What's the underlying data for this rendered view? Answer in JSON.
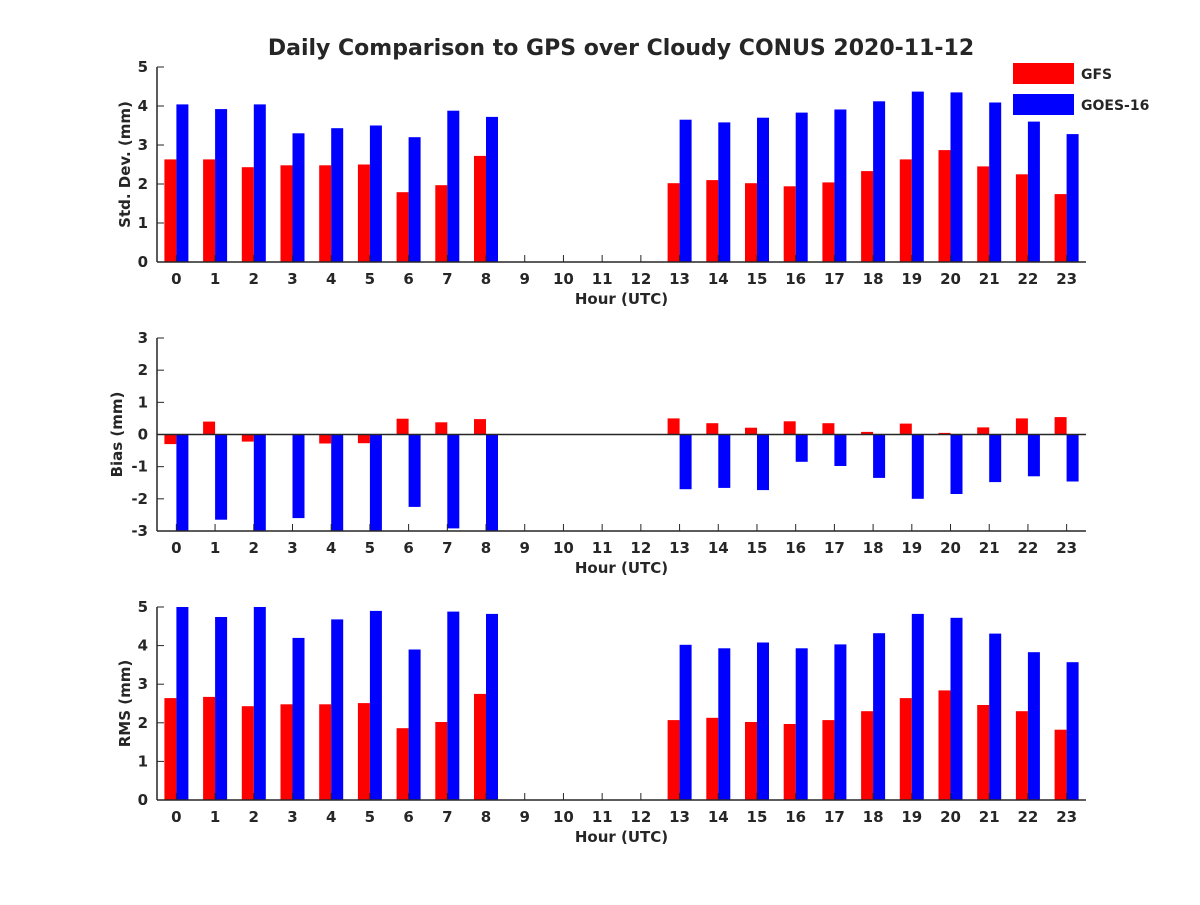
{
  "chart_data": [
    {
      "type": "bar",
      "title": "Daily Comparison to GPS over Cloudy CONUS 2020-11-12",
      "xlabel": "Hour (UTC)",
      "ylabel": "Std. Dev. (mm)",
      "ylim": [
        0,
        5
      ],
      "yticks": [
        "0",
        "1",
        "2",
        "3",
        "4",
        "5"
      ],
      "categories": [
        "0",
        "1",
        "2",
        "3",
        "4",
        "5",
        "6",
        "7",
        "8",
        "9",
        "10",
        "11",
        "12",
        "13",
        "14",
        "15",
        "16",
        "17",
        "18",
        "19",
        "20",
        "21",
        "22",
        "23"
      ],
      "series": [
        {
          "name": "GFS",
          "color": "#ff0000",
          "values": [
            2.63,
            2.63,
            2.43,
            2.48,
            2.48,
            2.5,
            1.79,
            1.97,
            2.72,
            null,
            null,
            null,
            null,
            2.02,
            2.1,
            2.02,
            1.94,
            2.04,
            2.33,
            2.63,
            2.87,
            2.45,
            2.25,
            1.74
          ]
        },
        {
          "name": "GOES-16",
          "color": "#0000ff",
          "values": [
            4.04,
            3.92,
            4.04,
            3.3,
            3.43,
            3.5,
            3.2,
            3.88,
            3.72,
            null,
            null,
            null,
            null,
            3.65,
            3.58,
            3.7,
            3.83,
            3.91,
            4.12,
            4.37,
            4.35,
            4.09,
            3.6,
            3.28
          ]
        }
      ],
      "legend": "top-right",
      "grid": false
    },
    {
      "type": "bar",
      "title": "",
      "xlabel": "Hour (UTC)",
      "ylabel": "Bias (mm)",
      "ylim": [
        -3,
        3
      ],
      "yticks": [
        "-3",
        "-2",
        "-1",
        "0",
        "1",
        "2",
        "3"
      ],
      "categories": [
        "0",
        "1",
        "2",
        "3",
        "4",
        "5",
        "6",
        "7",
        "8",
        "9",
        "10",
        "11",
        "12",
        "13",
        "14",
        "15",
        "16",
        "17",
        "18",
        "19",
        "20",
        "21",
        "22",
        "23"
      ],
      "series": [
        {
          "name": "GFS",
          "color": "#ff0000",
          "values": [
            -0.3,
            0.4,
            -0.22,
            0,
            -0.28,
            -0.27,
            0.49,
            0.38,
            0.48,
            null,
            null,
            null,
            null,
            0.5,
            0.35,
            0.21,
            0.41,
            0.35,
            0.08,
            0.34,
            0.05,
            0.22,
            0.5,
            0.54
          ]
        },
        {
          "name": "GOES-16",
          "color": "#0000ff",
          "values": [
            -3,
            -2.65,
            -3,
            -2.6,
            -3,
            -3,
            -2.25,
            -2.92,
            -3,
            null,
            null,
            null,
            null,
            -1.7,
            -1.66,
            -1.73,
            -0.85,
            -0.98,
            -1.35,
            -2,
            -1.85,
            -1.48,
            -1.3,
            -1.46
          ]
        }
      ],
      "grid": false
    },
    {
      "type": "bar",
      "title": "",
      "xlabel": "Hour (UTC)",
      "ylabel": "RMS (mm)",
      "ylim": [
        0,
        5
      ],
      "yticks": [
        "0",
        "1",
        "2",
        "3",
        "4",
        "5"
      ],
      "categories": [
        "0",
        "1",
        "2",
        "3",
        "4",
        "5",
        "6",
        "7",
        "8",
        "9",
        "10",
        "11",
        "12",
        "13",
        "14",
        "15",
        "16",
        "17",
        "18",
        "19",
        "20",
        "21",
        "22",
        "23"
      ],
      "series": [
        {
          "name": "GFS",
          "color": "#ff0000",
          "values": [
            2.64,
            2.67,
            2.43,
            2.48,
            2.48,
            2.51,
            1.86,
            2.02,
            2.75,
            null,
            null,
            null,
            null,
            2.07,
            2.13,
            2.02,
            1.97,
            2.07,
            2.3,
            2.64,
            2.84,
            2.46,
            2.3,
            1.82
          ]
        },
        {
          "name": "GOES-16",
          "color": "#0000ff",
          "values": [
            5,
            4.74,
            5,
            4.2,
            4.68,
            4.9,
            3.9,
            4.88,
            4.82,
            null,
            null,
            null,
            null,
            4.02,
            3.93,
            4.08,
            3.93,
            4.03,
            4.32,
            4.82,
            4.72,
            4.31,
            3.83,
            3.57
          ]
        }
      ],
      "grid": false
    }
  ]
}
